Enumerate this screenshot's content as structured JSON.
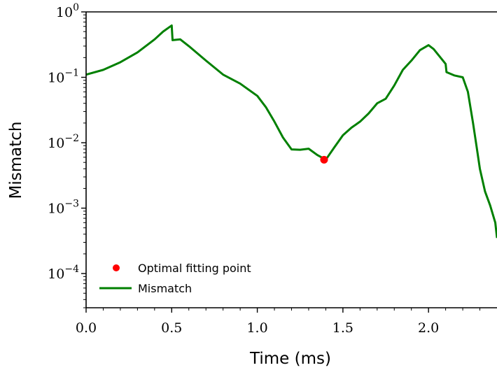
{
  "chart_data": {
    "type": "line",
    "xlabel": "Time (ms)",
    "ylabel": "Mismatch",
    "y_scale": "log",
    "xlim": [
      0.0,
      2.4
    ],
    "ylim": [
      3e-05,
      1.0
    ],
    "x_ticks": [
      0.0,
      0.5,
      1.0,
      1.5,
      2.0
    ],
    "x_tick_labels": [
      "0.0",
      "0.5",
      "1.0",
      "1.5",
      "2.0"
    ],
    "y_ticks": [
      1,
      0.1,
      0.01,
      0.001,
      0.0001
    ],
    "y_tick_labels": [
      {
        "base": "10",
        "exp": "0"
      },
      {
        "base": "10",
        "exp": "−1"
      },
      {
        "base": "10",
        "exp": "−2"
      },
      {
        "base": "10",
        "exp": "−3"
      },
      {
        "base": "10",
        "exp": "−4"
      }
    ],
    "grid": false,
    "legend_position": "lower-left",
    "colors": {
      "line": "#008000",
      "point": "#ff0000"
    },
    "series": [
      {
        "name": "Mismatch",
        "kind": "line",
        "x": [
          0.0,
          0.1,
          0.2,
          0.3,
          0.4,
          0.45,
          0.5,
          0.505,
          0.55,
          0.6,
          0.7,
          0.8,
          0.9,
          1.0,
          1.05,
          1.1,
          1.15,
          1.2,
          1.25,
          1.3,
          1.35,
          1.4,
          1.45,
          1.5,
          1.55,
          1.6,
          1.65,
          1.7,
          1.75,
          1.8,
          1.85,
          1.9,
          1.95,
          2.0,
          2.03,
          2.07,
          2.1,
          2.105,
          2.15,
          2.2,
          2.23,
          2.26,
          2.28,
          2.3,
          2.33,
          2.36,
          2.39,
          2.4
        ],
        "y": [
          0.11,
          0.13,
          0.17,
          0.24,
          0.38,
          0.5,
          0.62,
          0.37,
          0.38,
          0.3,
          0.18,
          0.11,
          0.08,
          0.052,
          0.035,
          0.021,
          0.012,
          0.0079,
          0.0078,
          0.0081,
          0.0065,
          0.0055,
          0.0085,
          0.013,
          0.017,
          0.021,
          0.028,
          0.04,
          0.047,
          0.075,
          0.13,
          0.18,
          0.26,
          0.31,
          0.27,
          0.2,
          0.16,
          0.12,
          0.107,
          0.1,
          0.06,
          0.02,
          0.009,
          0.004,
          0.0018,
          0.0011,
          0.0006,
          0.00035
        ]
      },
      {
        "name": "Optimal fitting point",
        "kind": "point",
        "x": [
          1.39
        ],
        "y": [
          0.0055
        ]
      }
    ]
  }
}
